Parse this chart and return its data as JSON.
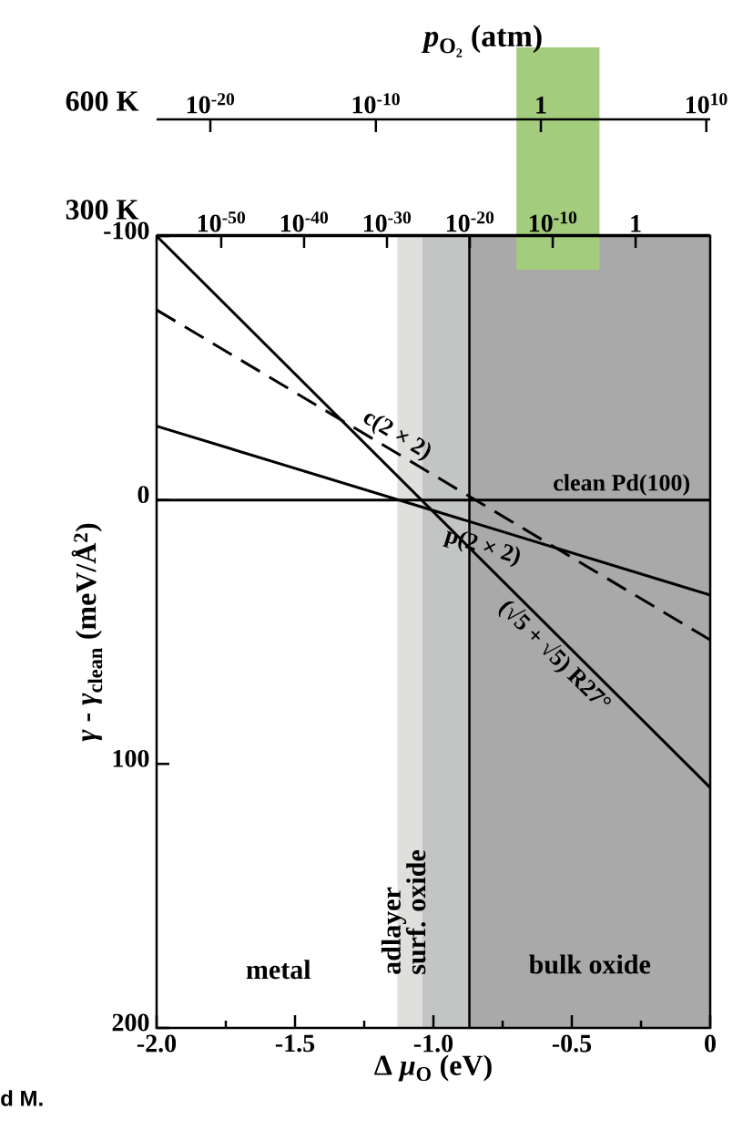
{
  "chart_data": [
    {
      "type": "other",
      "title": "*p*$_{O₂}$ (atm)",
      "annotations": [
        "600 K",
        "10$^{-20}$",
        "10$^{-10}$",
        "1",
        "10$^{10}$"
      ]
    },
    {
      "type": "line",
      "xlabel": "Δ *μ*$_{O}$ (eV)",
      "ylabel": "*γ* - *γ*$_{clean}$ (meV/Å$^{2}$)",
      "x2label": "300 K",
      "x": [
        -2,
        0
      ],
      "series": [
        {
          "name": "clean Pd(100)",
          "color": "#000000",
          "line_style": "solid",
          "values": [
            0,
            0
          ]
        },
        {
          "name": "c(2 × 2)",
          "color": "#000000",
          "line_style": "dashed",
          "values": [
            -72,
            53
          ]
        },
        {
          "name": "p(2 × 2)",
          "color": "#000000",
          "line_style": "solid",
          "values": [
            -28,
            36
          ]
        },
        {
          "name": "(√5 + √5) R27°",
          "color": "#000000",
          "line_style": "solid",
          "values": [
            -100,
            109
          ]
        }
      ],
      "xlim": [
        -2,
        0
      ],
      "ylim": [
        200,
        -100
      ],
      "xticks": [
        {
          "value": -2,
          "label": "-2.0"
        },
        {
          "value": -1.75,
          "label": null
        },
        {
          "value": -1.5,
          "label": "-1.5"
        },
        {
          "value": -1.25,
          "label": null
        },
        {
          "value": -1,
          "label": "-1.0"
        },
        {
          "value": -0.75,
          "label": null
        },
        {
          "value": -0.5,
          "label": "-0.5"
        },
        {
          "value": -0.25,
          "label": null
        },
        0
      ],
      "yticks": [
        -100,
        0,
        100,
        200
      ],
      "x2lim": [
        1.6e-58,
        1000000000.0
      ],
      "x2ticks": [
        {
          "value": 1e-50,
          "label": "10$^{-50}$"
        },
        {
          "value": 1e-40,
          "label": "10$^{-40}$"
        },
        {
          "value": 1e-30,
          "label": "10$^{-30}$"
        },
        {
          "value": 1e-20,
          "label": "10$^{-20}$"
        },
        {
          "value": 1e-10,
          "label": "10$^{-10}$"
        },
        1
      ],
      "log": "x2",
      "bands": [
        {
          "axis": "x",
          "from": -1.13,
          "to": -1.04,
          "label": "adlayer",
          "color": "#dfdfdb"
        },
        {
          "axis": "x",
          "from": -1.04,
          "to": -0.87,
          "label": "surf. oxide",
          "color": "#c3c5c5"
        },
        {
          "axis": "x",
          "from": -0.87,
          "to": 0,
          "label": "bulk oxide",
          "color": "#a9a9a9"
        },
        {
          "axis": "x",
          "from": -0.7,
          "to": -0.4,
          "color": "#a3cc7c"
        }
      ],
      "ref_lines": [
        {
          "axis": "x",
          "value": -0.87,
          "color": "#000000",
          "line_style": "solid"
        }
      ],
      "grid": false,
      "marker": "none",
      "annotations": [
        "metal",
        "d M."
      ]
    }
  ]
}
